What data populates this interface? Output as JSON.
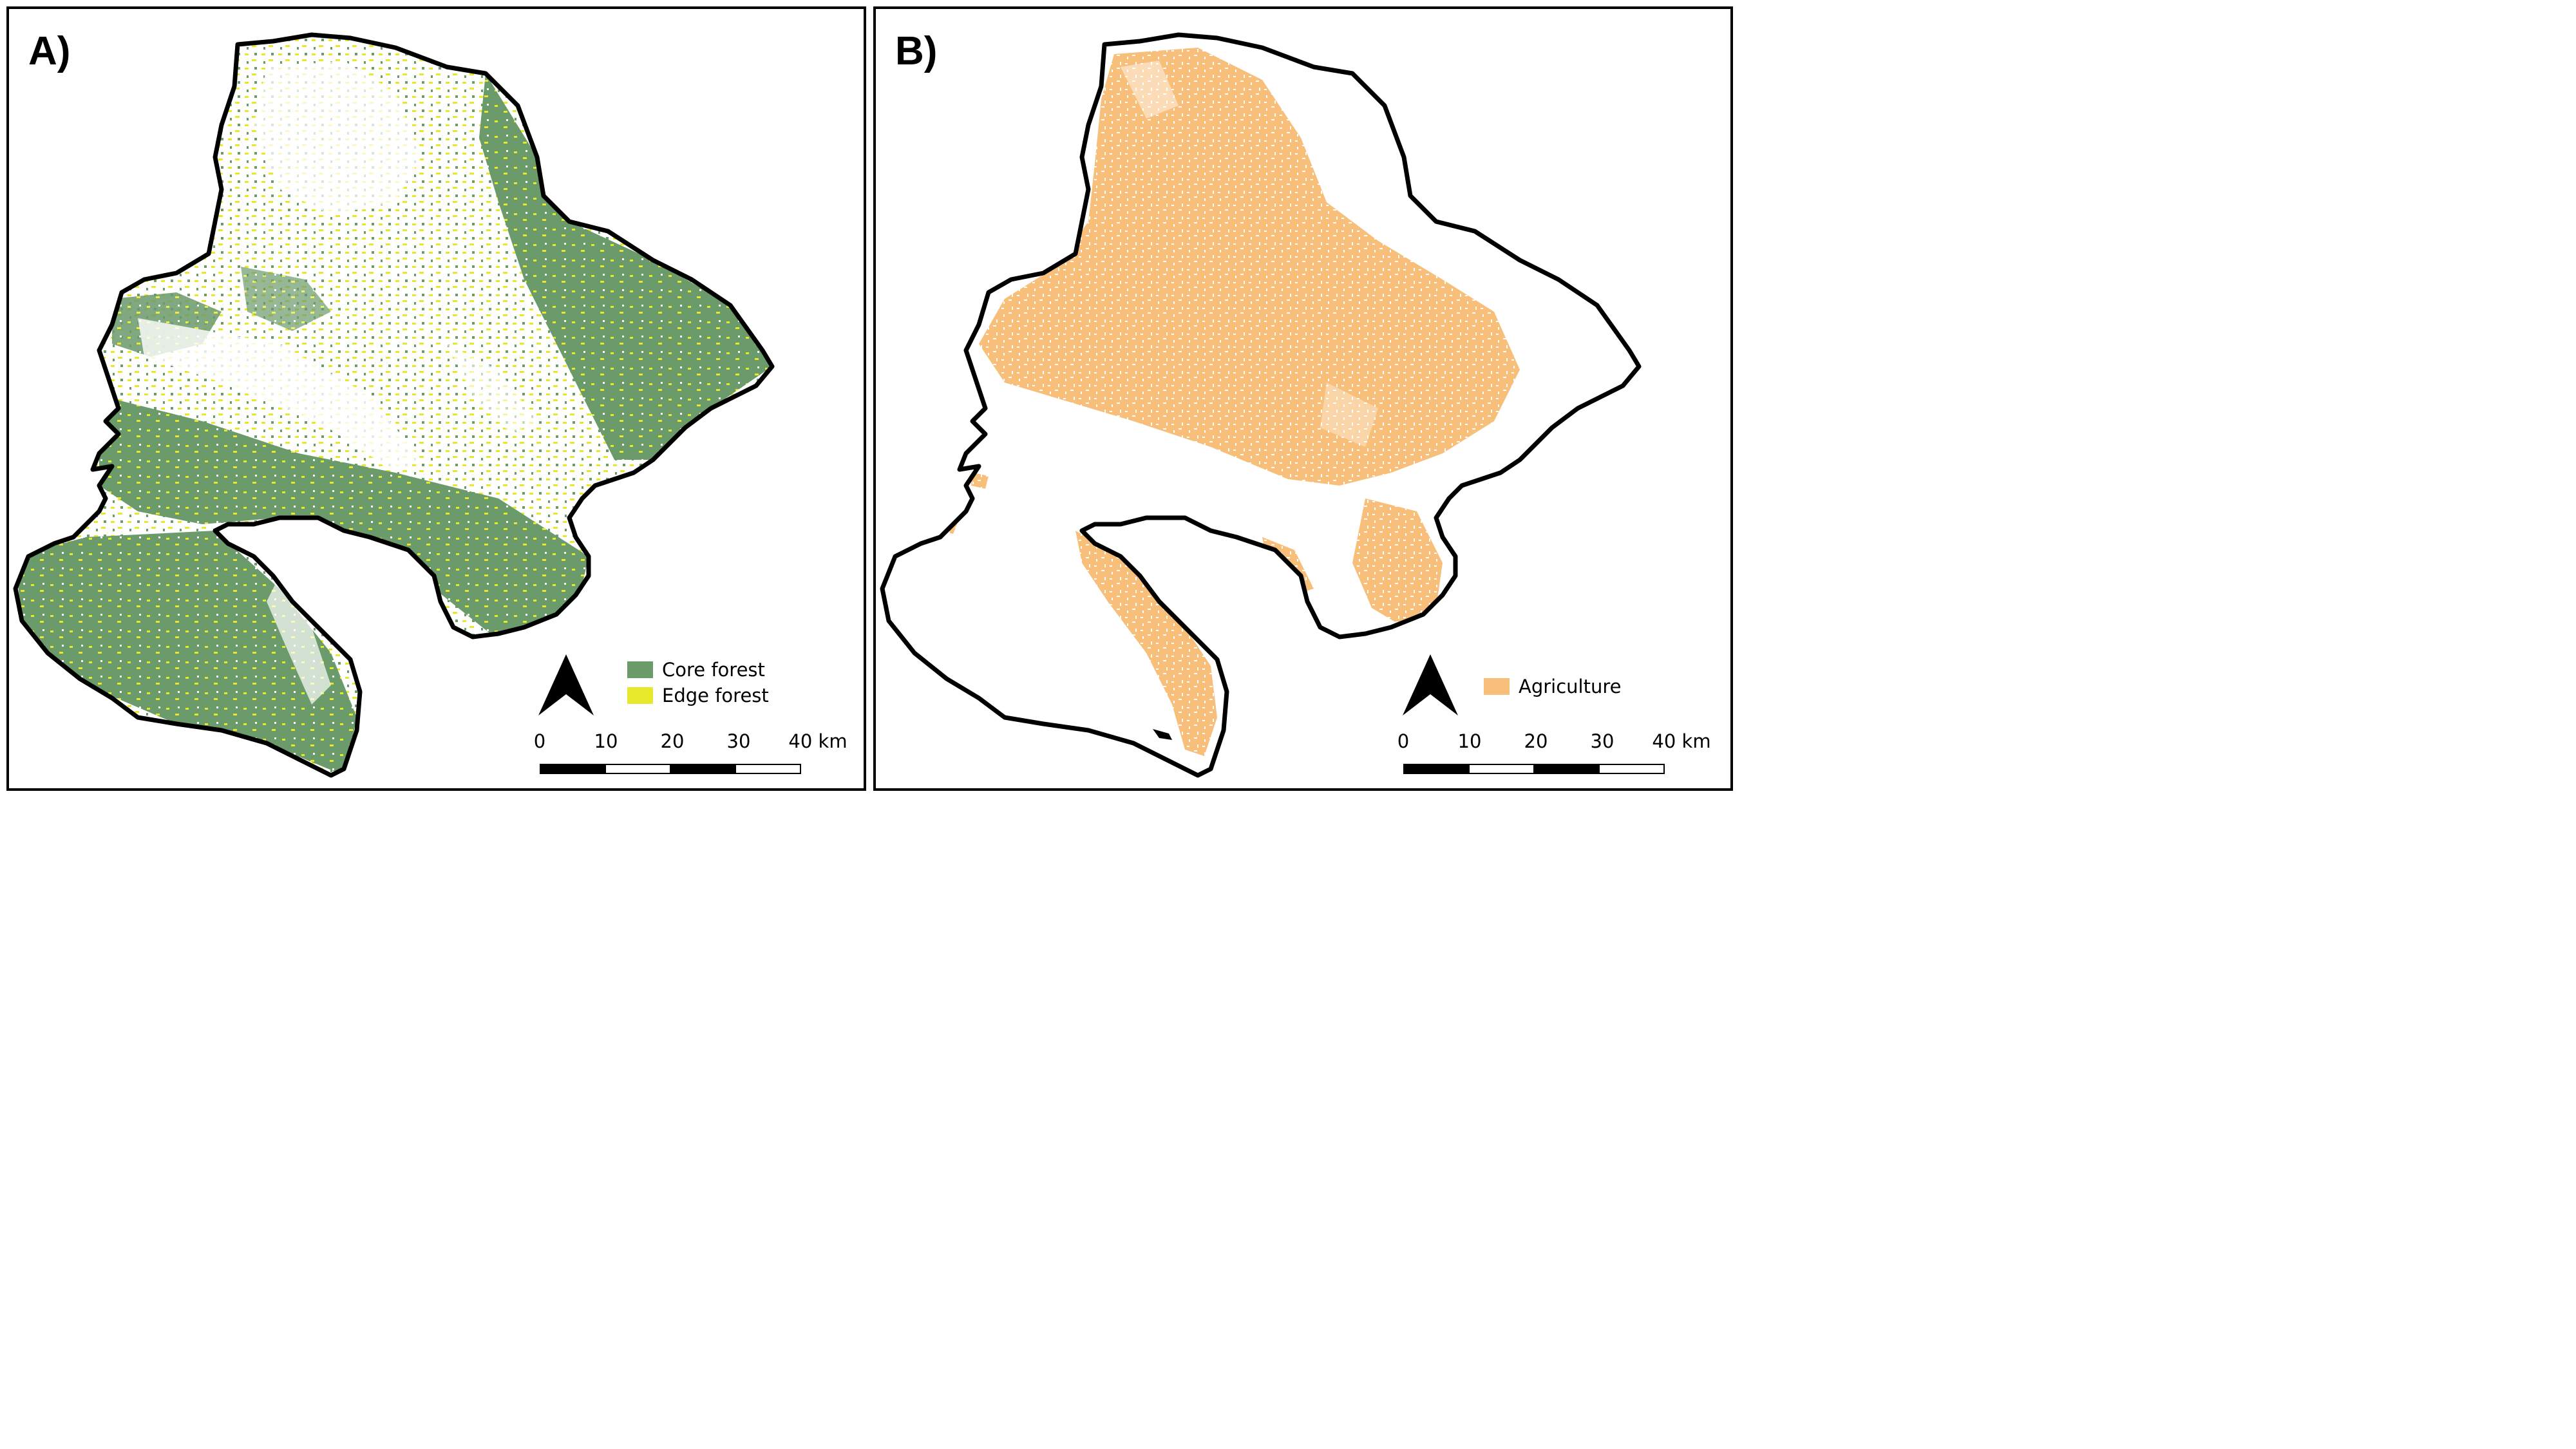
{
  "panels": [
    {
      "label": "A)",
      "legend": [
        {
          "label": "Core forest",
          "color": "#6b9a6b"
        },
        {
          "label": "Edge forest",
          "color": "#e8e82a"
        }
      ]
    },
    {
      "label": "B)",
      "legend": [
        {
          "label": "Agriculture",
          "color": "#f8bf7a"
        }
      ]
    }
  ],
  "scalebar": {
    "ticks": [
      "0",
      "10",
      "20",
      "30"
    ],
    "end_label": "40 km"
  },
  "colors": {
    "boundary": "#000000",
    "core_forest": "#6b9a6b",
    "edge_forest": "#e8e82a",
    "agriculture": "#f8bf7a"
  },
  "icons": {
    "north_arrow": "north-arrow-icon"
  }
}
